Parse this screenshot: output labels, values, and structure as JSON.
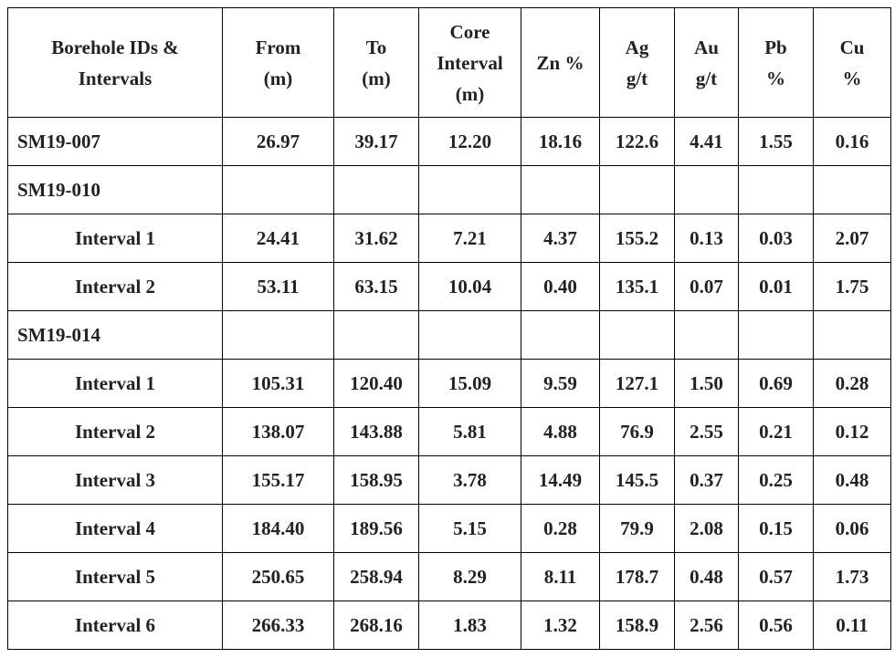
{
  "table": {
    "header": [
      [
        "Borehole IDs &",
        "Intervals"
      ],
      [
        "From",
        "(m)"
      ],
      [
        "To",
        "(m)"
      ],
      [
        "Core",
        "Interval",
        "(m)"
      ],
      [
        "Zn %"
      ],
      [
        "Ag",
        "g/t"
      ],
      [
        "Au",
        "g/t"
      ],
      [
        "Pb",
        "%"
      ],
      [
        "Cu",
        "%"
      ]
    ],
    "rows": [
      [
        "SM19-007",
        "26.97",
        "39.17",
        "12.20",
        "18.16",
        "122.6",
        "4.41",
        "1.55",
        "0.16"
      ],
      [
        "SM19-010"
      ],
      [
        "Interval 1",
        "24.41",
        "31.62",
        "7.21",
        "4.37",
        "155.2",
        "0.13",
        "0.03",
        "2.07"
      ],
      [
        "Interval 2",
        "53.11",
        "63.15",
        "10.04",
        "0.40",
        "135.1",
        "0.07",
        "0.01",
        "1.75"
      ],
      [
        "SM19-014"
      ],
      [
        "Interval 1",
        "105.31",
        "120.40",
        "15.09",
        "9.59",
        "127.1",
        "1.50",
        "0.69",
        "0.28"
      ],
      [
        "Interval 2",
        "138.07",
        "143.88",
        "5.81",
        "4.88",
        "76.9",
        "2.55",
        "0.21",
        "0.12"
      ],
      [
        "Interval 3",
        "155.17",
        "158.95",
        "3.78",
        "14.49",
        "145.5",
        "0.37",
        "0.25",
        "0.48"
      ],
      [
        "Interval 4",
        "184.40",
        "189.56",
        "5.15",
        "0.28",
        "79.9",
        "2.08",
        "0.15",
        "0.06"
      ],
      [
        "Interval 5",
        "250.65",
        "258.94",
        "8.29",
        "8.11",
        "178.7",
        "0.48",
        "0.57",
        "1.73"
      ],
      [
        "Interval 6",
        "266.33",
        "268.16",
        "1.83",
        "1.32",
        "158.9",
        "2.56",
        "0.56",
        "0.11"
      ]
    ]
  }
}
